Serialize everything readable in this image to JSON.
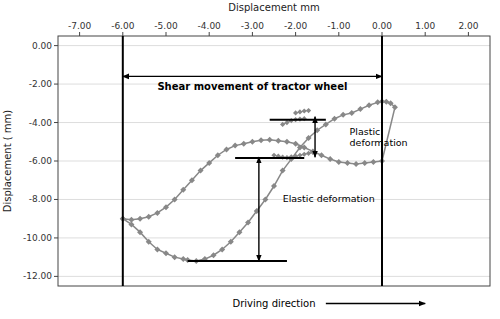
{
  "chart_data": {
    "type": "line",
    "x_label": "Displacement mm",
    "y_label": "Displacement ( mm)",
    "xlim": [
      -7.5,
      2.5
    ],
    "ylim": [
      -12.5,
      0.5
    ],
    "xticks": [
      {
        "value": -7.0,
        "label": "-7.00"
      },
      {
        "value": -6.0,
        "label": "-6.00"
      },
      {
        "value": -5.0,
        "label": "-5.00"
      },
      {
        "value": -4.0,
        "label": "-4.00"
      },
      {
        "value": -3.0,
        "label": "-3.00"
      },
      {
        "value": -2.0,
        "label": "-2.00"
      },
      {
        "value": -1.0,
        "label": "-1.00"
      },
      {
        "value": 0.0,
        "label": "0.00"
      },
      {
        "value": 1.0,
        "label": "1.00"
      },
      {
        "value": 2.0,
        "label": "2.00"
      }
    ],
    "yticks": [
      {
        "value": 0.0,
        "label": "0.00"
      },
      {
        "value": -2.0,
        "label": "-2.00"
      },
      {
        "value": -4.0,
        "label": "-4.00"
      },
      {
        "value": -6.0,
        "label": "-6.00"
      },
      {
        "value": -8.0,
        "label": "-8.00"
      },
      {
        "value": -10.0,
        "label": "-10.00"
      },
      {
        "value": -12.0,
        "label": "-12.00"
      }
    ],
    "grid": "y",
    "series": [
      {
        "color": "#888888",
        "marker": "diamond",
        "x": [
          -6.0,
          -5.8,
          -5.6,
          -5.4,
          -5.2,
          -5.0,
          -4.8,
          -4.6,
          -4.5,
          -4.3,
          -4.1,
          -3.9,
          -3.7,
          -3.5,
          -3.3,
          -3.1,
          -2.9,
          -2.7,
          -2.5,
          -2.3,
          -2.1,
          -1.9,
          -1.7,
          -1.5,
          -1.3,
          -1.1,
          -0.9,
          -0.7,
          -0.5,
          -0.3,
          -0.1,
          0.0,
          0.1,
          0.2,
          0.3,
          0.0,
          -0.2,
          -0.4,
          -0.6,
          -0.8,
          -1.0,
          -1.2,
          -1.4,
          -1.6,
          -1.8,
          -2.0,
          -2.2,
          -2.4,
          -2.6,
          -2.8,
          -3.0,
          -3.2,
          -3.4,
          -3.6,
          -3.8,
          -4.0,
          -4.2,
          -4.4,
          -4.6,
          -4.8,
          -5.0,
          -5.2,
          -5.4,
          -5.6,
          -5.8,
          -6.0
        ],
        "values": [
          -9.0,
          -9.3,
          -9.7,
          -10.2,
          -10.6,
          -10.8,
          -11.0,
          -11.1,
          -11.15,
          -11.2,
          -11.1,
          -10.9,
          -10.6,
          -10.2,
          -9.7,
          -9.2,
          -8.6,
          -8.0,
          -7.3,
          -6.5,
          -5.9,
          -5.3,
          -4.8,
          -4.4,
          -4.1,
          -3.8,
          -3.6,
          -3.5,
          -3.3,
          -3.1,
          -2.95,
          -2.9,
          -2.92,
          -3.0,
          -3.2,
          -6.0,
          -6.05,
          -6.1,
          -6.15,
          -6.1,
          -6.05,
          -5.9,
          -5.7,
          -5.5,
          -5.3,
          -5.1,
          -5.0,
          -4.95,
          -4.9,
          -4.92,
          -5.0,
          -5.1,
          -5.2,
          -5.4,
          -5.7,
          -6.1,
          -6.5,
          -7.0,
          -7.5,
          -8.0,
          -8.4,
          -8.7,
          -8.9,
          -9.0,
          -9.05,
          -9.0
        ]
      },
      {
        "color": "#888888",
        "marker": "diamond",
        "x": [
          -2.5,
          -2.4,
          -2.3,
          -2.2,
          -2.1,
          -2.0,
          -1.9,
          -1.8,
          -1.7,
          -1.6
        ],
        "values": [
          -5.7,
          -5.75,
          -5.8,
          -5.82,
          -5.78,
          -5.75,
          -5.7,
          -5.65,
          -5.6,
          -5.55
        ]
      },
      {
        "color": "#888888",
        "marker": "diamond",
        "x": [
          -2.3,
          -2.2,
          -2.1,
          -2.0,
          -1.9,
          -1.8
        ],
        "values": [
          -4.1,
          -4.0,
          -3.9,
          -3.85,
          -3.82,
          -3.8
        ]
      },
      {
        "color": "#888888",
        "marker": "diamond",
        "x": [
          -2.0,
          -1.9,
          -1.8,
          -1.7
        ],
        "values": [
          -3.5,
          -3.45,
          -3.4,
          -3.38
        ]
      }
    ],
    "annotations": [
      {
        "kind": "vline",
        "x": -6.0
      },
      {
        "kind": "vline",
        "x": 0.0
      },
      {
        "kind": "double_arrow",
        "x1": -6.0,
        "y1": -1.6,
        "x2": 0.0,
        "y2": -1.6,
        "text": "Shear movement of tractor wheel"
      },
      {
        "kind": "segment",
        "x1": -2.6,
        "y1": -3.85,
        "x2": -1.3,
        "y2": -3.85
      },
      {
        "kind": "segment",
        "x1": -3.4,
        "y1": -5.85,
        "x2": -1.8,
        "y2": -5.85
      },
      {
        "kind": "double_arrow",
        "x1": -1.55,
        "y1": -3.7,
        "x2": -1.55,
        "y2": -5.8
      },
      {
        "kind": "text",
        "x": -0.75,
        "y": -4.8,
        "text": "Plastic\ndeformation"
      },
      {
        "kind": "segment",
        "x1": -4.5,
        "y1": -11.2,
        "x2": -2.2,
        "y2": -11.2
      },
      {
        "kind": "double_arrow",
        "x1": -2.85,
        "y1": -5.8,
        "x2": -2.85,
        "y2": -11.2
      },
      {
        "kind": "text",
        "x": -2.3,
        "y": -8.0,
        "text": "Elastic deformation"
      },
      {
        "kind": "caption_arrow",
        "text": "Driving direction"
      }
    ]
  }
}
